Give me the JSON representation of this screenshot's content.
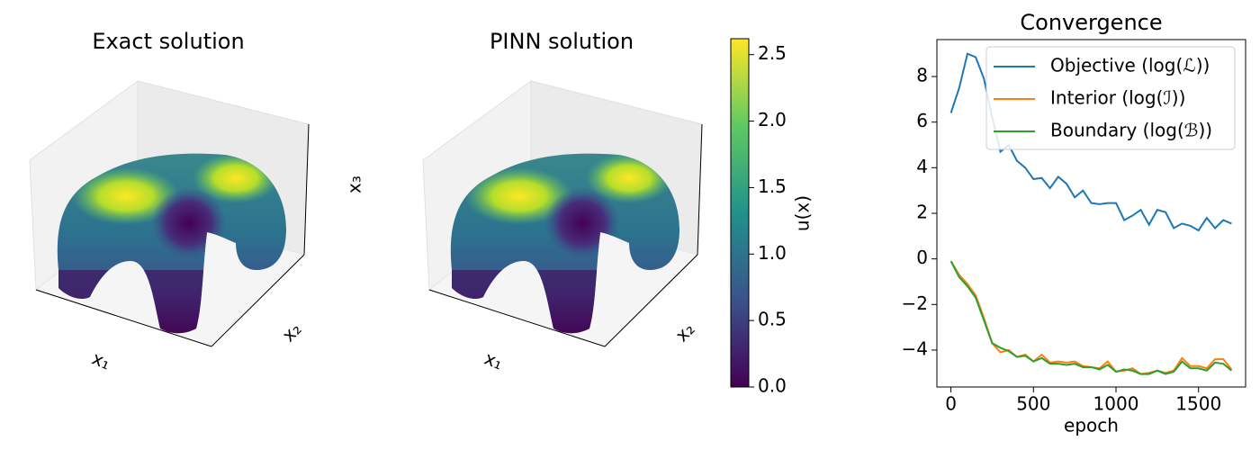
{
  "chart_data": [
    {
      "type": "surface3d",
      "title": "Exact solution",
      "xlabel": "x₁",
      "ylabel": "x₂",
      "zlabel": "x₃",
      "colormap": "viridis"
    },
    {
      "type": "surface3d",
      "title": "PINN solution",
      "xlabel": "x₁",
      "ylabel": "x₂",
      "colormap": "viridis",
      "colorbar": {
        "label": "u(x)",
        "lim": [
          0,
          2.62
        ],
        "ticks": [
          {
            "value": 0,
            "label": "0.0"
          },
          {
            "value": 0.5,
            "label": "0.5"
          },
          {
            "value": 1,
            "label": "1.0"
          },
          {
            "value": 1.5,
            "label": "1.5"
          },
          {
            "value": 2,
            "label": "2.0"
          },
          {
            "value": 2.5,
            "label": "2.5"
          }
        ]
      }
    },
    {
      "type": "line",
      "title": "Convergence",
      "xlabel": "epoch",
      "legend": "upper right",
      "x": [
        0,
        50,
        100,
        150,
        200,
        250,
        300,
        350,
        400,
        450,
        500,
        550,
        600,
        650,
        700,
        750,
        800,
        850,
        900,
        950,
        1000,
        1050,
        1100,
        1150,
        1200,
        1250,
        1300,
        1350,
        1400,
        1450,
        1500,
        1550,
        1600,
        1650,
        1700
      ],
      "series": [
        {
          "name": "Objective (log(ℒ))",
          "color": "#1f77b4",
          "values": [
            6.4,
            7.5,
            9.0,
            8.85,
            7.9,
            6.2,
            4.7,
            5.0,
            4.3,
            4.0,
            3.5,
            3.55,
            3.1,
            3.6,
            3.3,
            2.7,
            3.0,
            2.45,
            2.4,
            2.45,
            2.45,
            1.7,
            1.9,
            2.15,
            1.5,
            2.15,
            2.05,
            1.35,
            1.55,
            1.45,
            1.25,
            1.8,
            1.35,
            1.7,
            1.55
          ]
        },
        {
          "name": "Interior (log(ℐ))",
          "color": "#ff7f0e",
          "values": [
            -0.1,
            -0.7,
            -1.1,
            -1.6,
            -2.6,
            -3.7,
            -4.1,
            -4.0,
            -4.3,
            -4.2,
            -4.5,
            -4.2,
            -4.55,
            -4.5,
            -4.55,
            -4.5,
            -4.7,
            -4.75,
            -4.8,
            -4.5,
            -4.95,
            -4.9,
            -4.8,
            -5.05,
            -5.0,
            -4.9,
            -5.0,
            -4.9,
            -4.35,
            -4.7,
            -4.7,
            -4.8,
            -4.4,
            -4.4,
            -4.85
          ]
        },
        {
          "name": "Boundary (log(ℬ))",
          "color": "#2ca02c",
          "values": [
            -0.1,
            -0.8,
            -1.2,
            -1.7,
            -2.7,
            -3.7,
            -3.9,
            -4.05,
            -4.3,
            -4.25,
            -4.5,
            -4.35,
            -4.6,
            -4.6,
            -4.65,
            -4.6,
            -4.75,
            -4.75,
            -4.85,
            -4.65,
            -4.95,
            -4.85,
            -4.9,
            -5.05,
            -5.05,
            -4.9,
            -5.05,
            -4.95,
            -4.5,
            -4.8,
            -4.8,
            -4.9,
            -4.55,
            -4.6,
            -4.9
          ]
        }
      ],
      "xlim": [
        -85,
        1785
      ],
      "ylim": [
        -5.62,
        9.62
      ],
      "xticks": [
        0,
        500,
        1000,
        1500
      ],
      "yticks": [
        {
          "value": -4,
          "label": "−4"
        },
        {
          "value": -2,
          "label": "−2"
        },
        0,
        2,
        4,
        6,
        8
      ]
    }
  ]
}
